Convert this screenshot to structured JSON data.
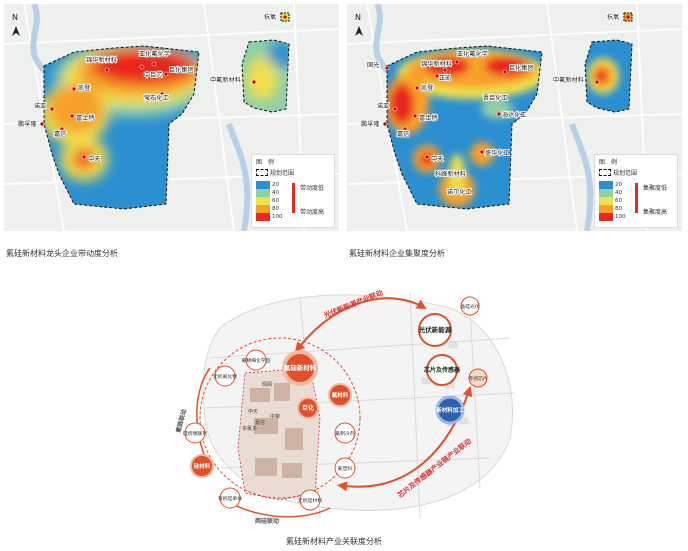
{
  "maps": [
    {
      "caption": "氟硅新材料龙头企业带动度分析",
      "north": "N",
      "labels": [
        "锦华新材料",
        "亚化氟化学",
        "巨化集团",
        "中巨芯",
        "凯登",
        "萤石化工",
        "诺亚",
        "鹏孚隆",
        "富士特",
        "嘉信",
        "中天",
        "中氟新材料",
        "杭氧"
      ],
      "legend_title": "图　例",
      "legend_boundary": "规划范围",
      "legend_scale": [
        "20",
        "40",
        "60",
        "80",
        "100"
      ],
      "legend_low": "带动度低",
      "legend_high": "带动度高"
    },
    {
      "caption": "氟硅新材料企业集聚度分析",
      "north": "N",
      "labels": [
        "国光",
        "亚化氟化学",
        "锦华新材料",
        "巨化集团",
        "正凯",
        "凯登",
        "晋巨化工",
        "海达化工",
        "诺亚",
        "富士特",
        "鹏孚隆",
        "中天",
        "嘉信",
        "盛华化工",
        "科峰新材料",
        "诺尔化工",
        "中氟新材料",
        "杭氧"
      ],
      "legend_title": "图　例",
      "legend_boundary": "规划范围",
      "legend_scale": [
        "20",
        "40",
        "60",
        "80",
        "100"
      ],
      "legend_low": "集聚度低",
      "legend_high": "集聚度高"
    }
  ],
  "diagram": {
    "caption": "氟硅新材料产业关联度分析",
    "links": {
      "top": "光伏新能源产业联动",
      "right": "芯片及传感器产业链产业联动",
      "left": "氟链联动",
      "bottom": "两硅联动"
    },
    "nodes": {
      "fluorosilicon": "氟硅新材料",
      "pv": "光伏新能源",
      "chip": "芯片及传感器",
      "new_material": "新材料加工",
      "juhua": "巨化",
      "fluoro_material": "氟材料",
      "silicon_material": "硅材料",
      "fluoro_chem": "氟精细化学品",
      "inorganic_fluoro": "无机氟化物",
      "silane": "硅烷偶联剂",
      "organosilicon_monomer": "有机硅单体",
      "inorganic_silicon": "无机硅材料",
      "fluoroplastic": "氟塑料",
      "refrigerant": "氟制冷剂",
      "photovoltaic_silicon": "晶硅光伏",
      "sensor_chip": "传感芯片"
    },
    "inner_labels": [
      "佩阁",
      "中天",
      "嘉信",
      "多氟多",
      "中荣"
    ]
  }
}
